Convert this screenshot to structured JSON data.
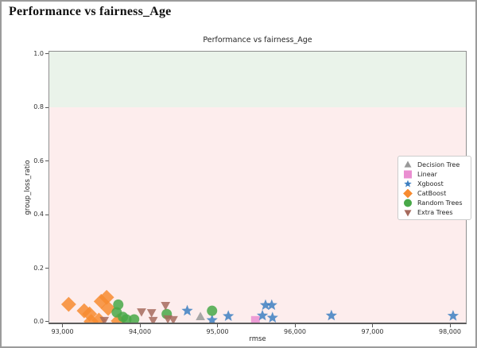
{
  "page": {
    "title": "Performance vs fairness_Age"
  },
  "chart_data": {
    "type": "scatter",
    "title": "Performance vs fairness_Age",
    "xlabel": "rmse",
    "ylabel": "group_loss_ratio",
    "xlim": [
      92830,
      98205
    ],
    "ylim": [
      -0.003,
      1.008
    ],
    "x_ticks": [
      93000,
      94000,
      95000,
      96000,
      97000,
      98000
    ],
    "x_tick_labels": [
      "93,000",
      "94,000",
      "95,000",
      "96,000",
      "97,000",
      "98,000"
    ],
    "y_ticks": [
      0.0,
      0.2,
      0.4,
      0.6,
      0.8,
      1.0
    ],
    "y_tick_labels": [
      "0.0",
      "0.2",
      "0.4",
      "0.6",
      "0.8",
      "1.0"
    ],
    "grid": false,
    "legend_position": "center-right",
    "bands": [
      {
        "name": "upper-green-zone",
        "from": 0.8,
        "to": 1.008,
        "color": "#eaf3ea"
      },
      {
        "name": "lower-pink-zone",
        "from": -0.003,
        "to": 0.8,
        "color": "#fdeded"
      }
    ],
    "series": [
      {
        "name": "Decision Tree",
        "marker": "triangle-up",
        "color": "#999999",
        "size": 6.5,
        "points": [
          [
            94780,
            0.018
          ]
        ]
      },
      {
        "name": "Linear",
        "marker": "square",
        "color": "#ea8ed1",
        "size": 5.5,
        "points": [
          [
            95490,
            0.005
          ]
        ]
      },
      {
        "name": "Xgboost",
        "marker": "star",
        "color": "#3d7fc1",
        "size": 7.5,
        "points": [
          [
            94610,
            0.041
          ],
          [
            94930,
            0.006
          ],
          [
            95140,
            0.021
          ],
          [
            95580,
            0.023
          ],
          [
            95620,
            0.062
          ],
          [
            95700,
            0.062
          ],
          [
            95710,
            0.015
          ],
          [
            96470,
            0.023
          ],
          [
            98040,
            0.022
          ]
        ]
      },
      {
        "name": "CatBoost",
        "marker": "diamond",
        "color": "#f78b30",
        "size": 8,
        "points": [
          [
            93080,
            0.065
          ],
          [
            93280,
            0.041
          ],
          [
            93350,
            0.029
          ],
          [
            93370,
            0.001
          ],
          [
            93470,
            0.006
          ],
          [
            93500,
            0.076
          ],
          [
            93570,
            0.091
          ],
          [
            93590,
            0.05
          ],
          [
            93720,
            0.003
          ]
        ]
      },
      {
        "name": "Random Trees",
        "marker": "circle",
        "color": "#48a848",
        "size": 6.5,
        "points": [
          [
            93720,
            0.064
          ],
          [
            93700,
            0.035
          ],
          [
            93780,
            0.018
          ],
          [
            93825,
            0.009
          ],
          [
            93925,
            0.009
          ],
          [
            94345,
            0.029
          ],
          [
            94930,
            0.041
          ]
        ]
      },
      {
        "name": "Extra Trees",
        "marker": "triangle-down",
        "color": "#a66a5d",
        "size": 6.5,
        "points": [
          [
            93540,
            0.006
          ],
          [
            94020,
            0.038
          ],
          [
            94150,
            0.035
          ],
          [
            94170,
            0.006
          ],
          [
            94330,
            0.062
          ],
          [
            94360,
            0.012
          ],
          [
            94430,
            0.009
          ]
        ]
      }
    ]
  }
}
